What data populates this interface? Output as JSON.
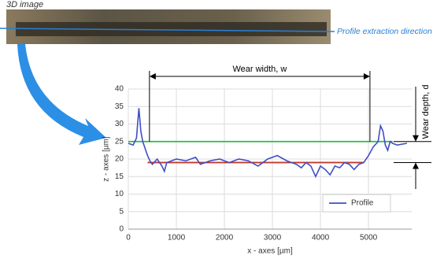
{
  "image_label": "3D image",
  "direction_label": "Profile extraction direction",
  "chart_data": {
    "type": "line",
    "xlabel": "x - axes [µm]",
    "ylabel": "z - axes [µm]",
    "xlim": [
      0,
      5900
    ],
    "ylim": [
      0,
      40
    ],
    "xticks": [
      0,
      1000,
      2000,
      3000,
      4000,
      5000
    ],
    "yticks": [
      0,
      5,
      10,
      15,
      20,
      25,
      30,
      35,
      40
    ],
    "grid": true,
    "legend": "lower right",
    "x": [
      0,
      100,
      170,
      220,
      260,
      300,
      350,
      400,
      450,
      500,
      600,
      700,
      750,
      800,
      900,
      1000,
      1200,
      1400,
      1500,
      1700,
      1900,
      2100,
      2300,
      2500,
      2700,
      2900,
      3100,
      3300,
      3400,
      3500,
      3600,
      3700,
      3800,
      3900,
      4000,
      4100,
      4200,
      4300,
      4400,
      4500,
      4600,
      4700,
      4800,
      4900,
      5000,
      5100,
      5200,
      5250,
      5300,
      5350,
      5400,
      5450,
      5500,
      5600,
      5800
    ],
    "series": [
      {
        "name": "Profile",
        "color": "#3f4fc4",
        "values": [
          24.5,
          24,
          26,
          34.5,
          28,
          25,
          23,
          21,
          19.5,
          18.5,
          20,
          18,
          16.5,
          19,
          19.5,
          20,
          19.5,
          20.5,
          18.5,
          19.5,
          20,
          19,
          20,
          19.5,
          18,
          20,
          21,
          19.5,
          19,
          18.5,
          17.5,
          19,
          18,
          15,
          18,
          17,
          15.5,
          18,
          17.5,
          19,
          18.5,
          17,
          18.5,
          19,
          21,
          23.5,
          25,
          29.5,
          28,
          24,
          22.5,
          25,
          24.5,
          24,
          24.5
        ]
      }
    ],
    "reference_lines": [
      {
        "value": 25,
        "color": "#2fb84a",
        "x": [
          0,
          5500
        ]
      },
      {
        "value": 19,
        "color": "#c0392b",
        "x": [
          400,
          4900
        ]
      }
    ],
    "wear_width": {
      "label": "Wear width, w",
      "x": [
        440,
        5030
      ]
    },
    "wear_depth": {
      "label": "Wear depth, d",
      "z": [
        25,
        19
      ]
    }
  }
}
